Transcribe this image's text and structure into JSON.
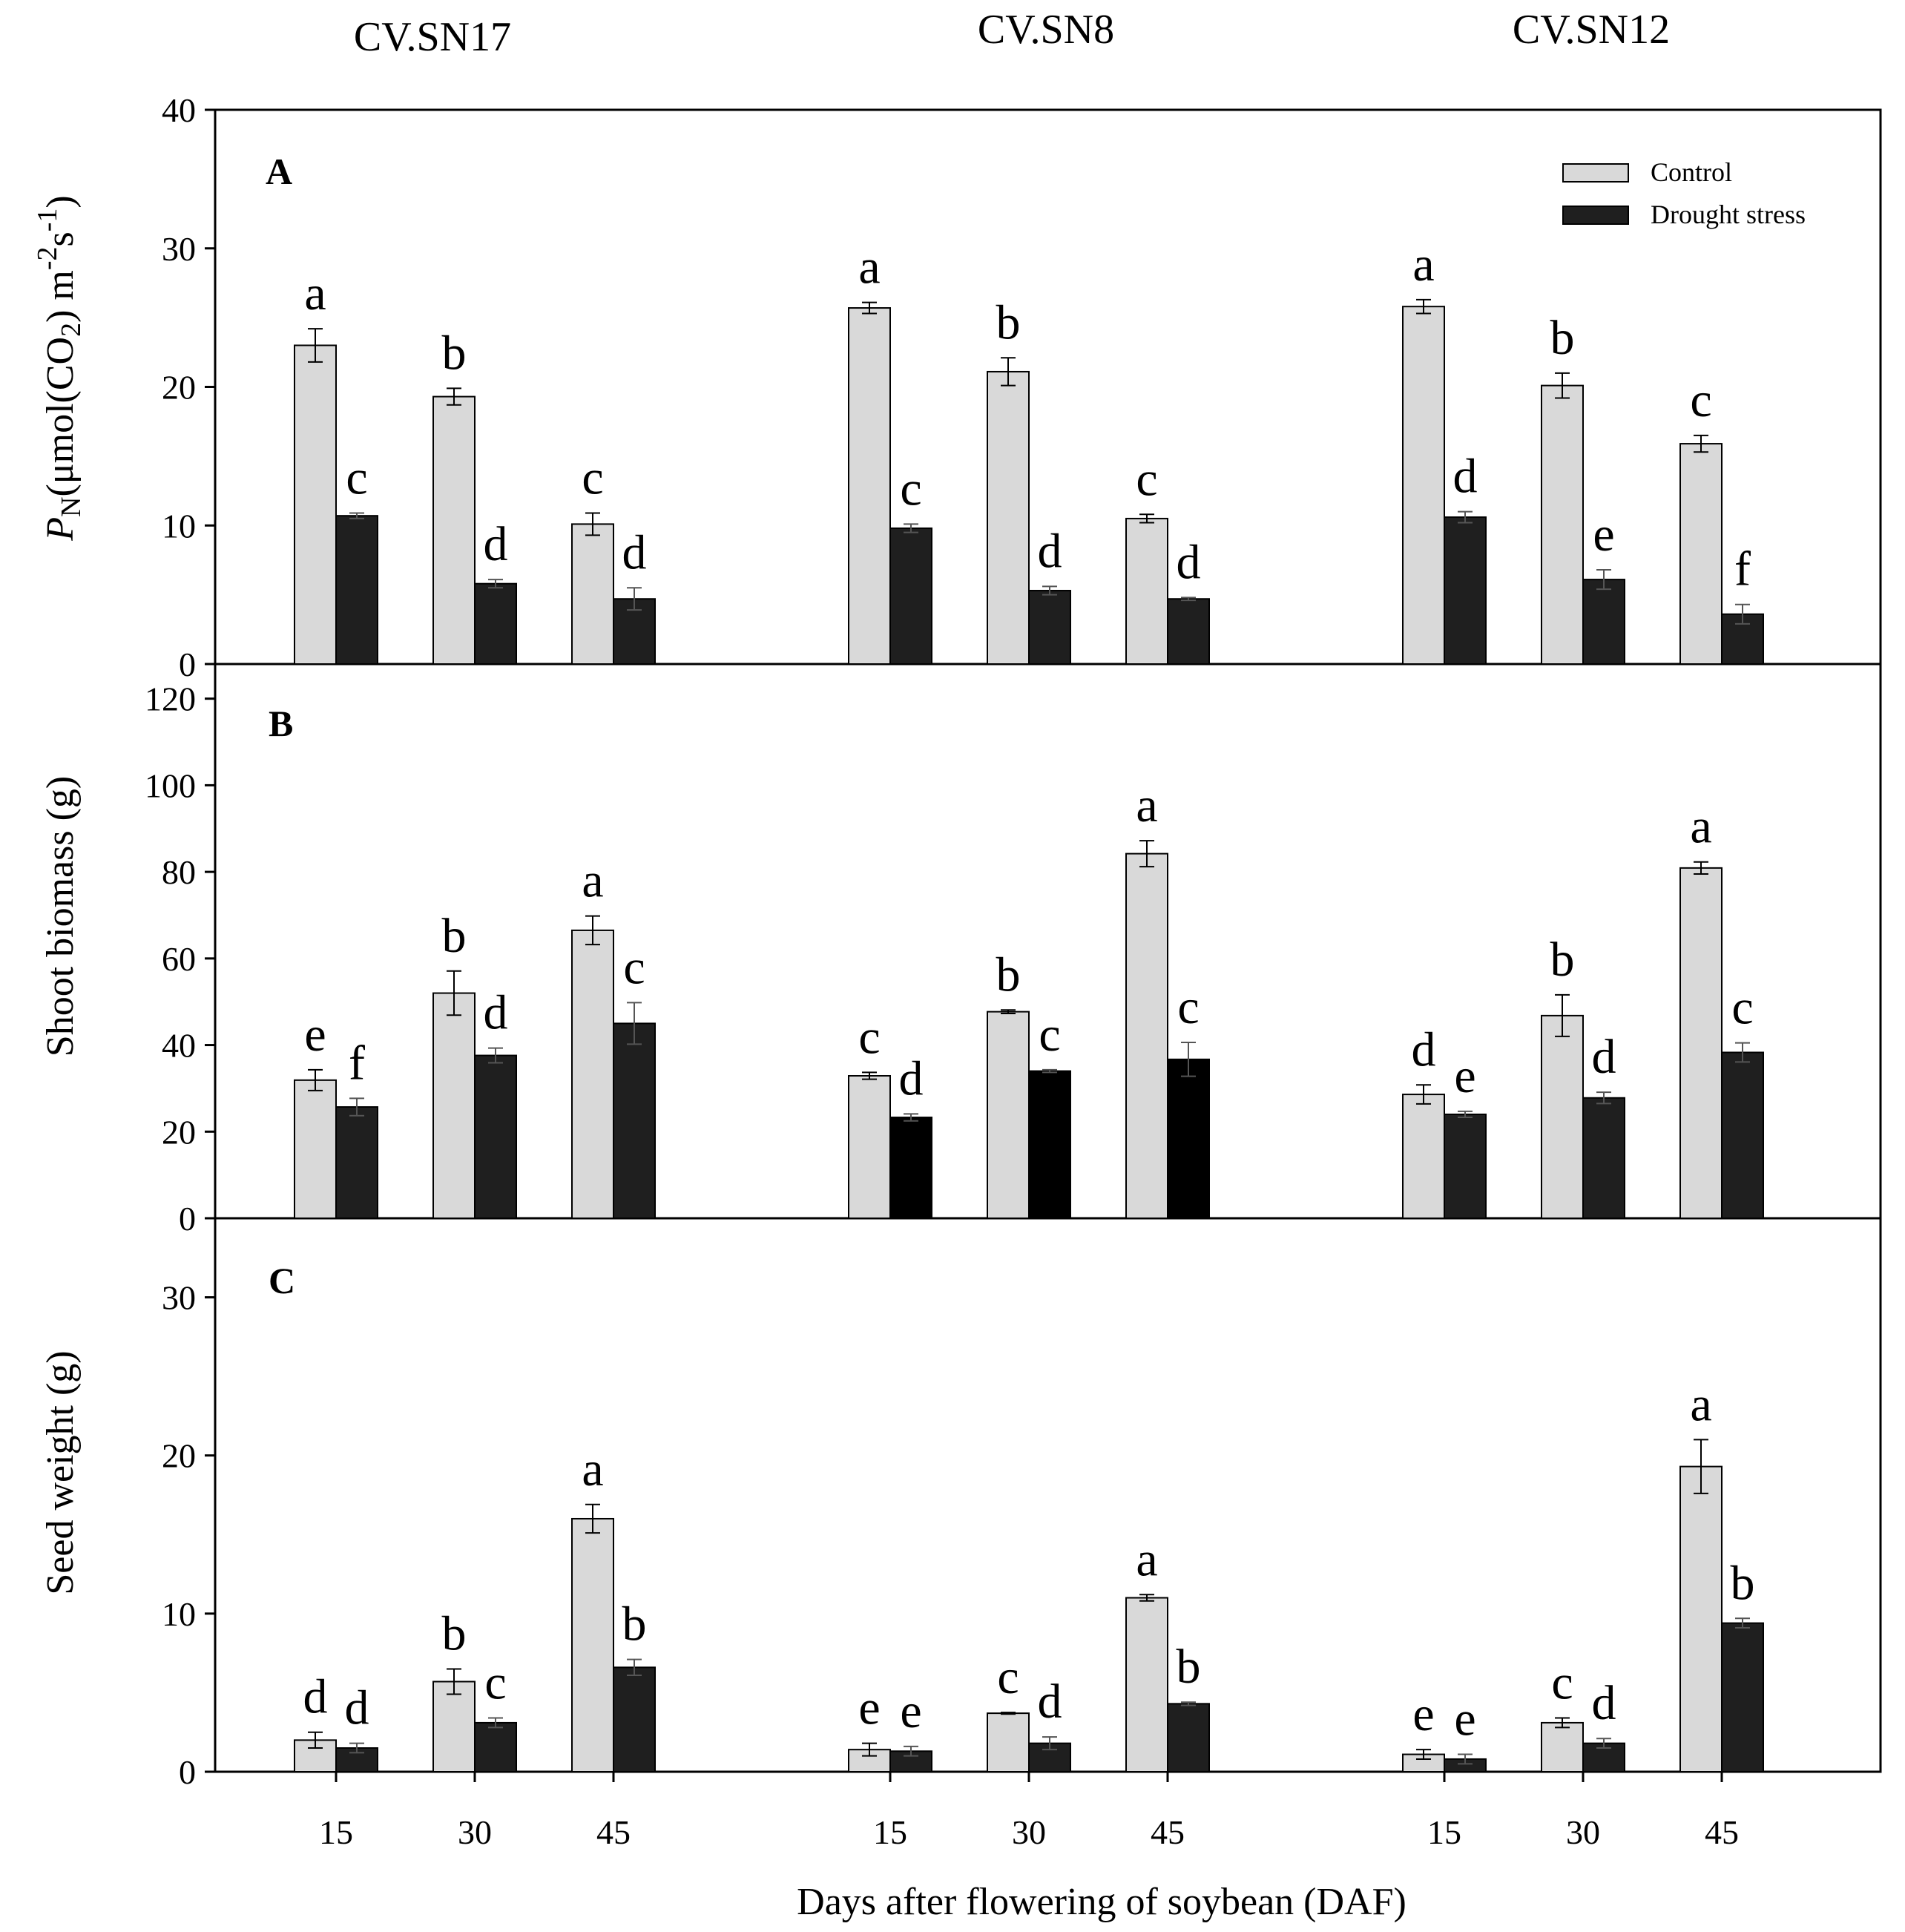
{
  "chart_data": {
    "type": "bar",
    "xlabel": "Days after flowering of soybean (DAF)",
    "cultivars": [
      "CV.SN17",
      "CV.SN8",
      "CV.SN12"
    ],
    "days": [
      "15",
      "30",
      "45"
    ],
    "legend": {
      "control": "Control",
      "drought": "Drought stress"
    },
    "colors": {
      "control": "#d9d9d9",
      "drought": "#1f1f1f",
      "drought_sn8_biomass": "#000000"
    },
    "panels": [
      {
        "id": "A",
        "ylabel_main": "P",
        "ylabel_sub": "N",
        "ylabel_rest": "(μmol(CO",
        "ylabel_sub2": "2",
        "ylabel_unit": ") m",
        "ylabel_sup1": "-2",
        "ylabel_s": "s",
        "ylabel_sup2": "-1",
        "ylabel_close": ")",
        "ylim": [
          0,
          40
        ],
        "yticks": [
          "0",
          "10",
          "20",
          "30",
          "40"
        ],
        "control": [
          [
            23.0,
            19.3,
            10.1
          ],
          [
            25.7,
            21.1,
            10.5
          ],
          [
            25.8,
            20.1,
            15.9
          ]
        ],
        "control_err": [
          [
            1.2,
            0.6,
            0.8
          ],
          [
            0.4,
            1.0,
            0.3
          ],
          [
            0.5,
            0.9,
            0.6
          ]
        ],
        "drought": [
          [
            10.7,
            5.8,
            4.7
          ],
          [
            9.8,
            5.3,
            4.7
          ],
          [
            10.6,
            6.1,
            3.6
          ]
        ],
        "drought_err": [
          [
            0.2,
            0.3,
            0.8
          ],
          [
            0.3,
            0.3,
            0.1
          ],
          [
            0.4,
            0.7,
            0.7
          ]
        ],
        "control_sig": [
          [
            "a",
            "b",
            "c"
          ],
          [
            "a",
            "b",
            "c"
          ],
          [
            "a",
            "b",
            "c"
          ]
        ],
        "drought_sig": [
          [
            "c",
            "d",
            "d"
          ],
          [
            "c",
            "d",
            "d"
          ],
          [
            "d",
            "e",
            "f"
          ]
        ]
      },
      {
        "id": "B",
        "ylabel": "Shoot biomass (g)",
        "ylim": [
          0,
          128
        ],
        "yticks": [
          "0",
          "20",
          "40",
          "60",
          "80",
          "100",
          "120"
        ],
        "ytick_values": [
          0,
          20,
          40,
          60,
          80,
          100,
          120
        ],
        "control": [
          [
            31.9,
            52.0,
            66.5
          ],
          [
            32.9,
            47.7,
            84.2
          ],
          [
            28.6,
            46.8,
            80.9
          ]
        ],
        "control_err": [
          [
            2.4,
            5.1,
            3.3
          ],
          [
            0.8,
            0.4,
            3.0
          ],
          [
            2.2,
            4.8,
            1.4
          ]
        ],
        "drought": [
          [
            25.7,
            37.6,
            45.0
          ],
          [
            23.3,
            34.0,
            36.7
          ],
          [
            24.0,
            27.8,
            38.3
          ]
        ],
        "drought_err": [
          [
            2.0,
            1.7,
            4.8
          ],
          [
            0.8,
            0.3,
            3.9
          ],
          [
            0.7,
            1.3,
            2.2
          ]
        ],
        "control_sig": [
          [
            "e",
            "b",
            "a"
          ],
          [
            "c",
            "b",
            "a"
          ],
          [
            "d",
            "b",
            "a"
          ]
        ],
        "drought_sig": [
          [
            "f",
            "d",
            "c"
          ],
          [
            "d",
            "c",
            "c"
          ],
          [
            "e",
            "d",
            "c"
          ]
        ]
      },
      {
        "id": "C",
        "ylabel": "Seed weight (g)",
        "ylim": [
          0,
          35
        ],
        "yticks": [
          "0",
          "10",
          "20",
          "30"
        ],
        "ytick_values": [
          0,
          10,
          20,
          30
        ],
        "control": [
          [
            2.0,
            5.7,
            16.0
          ],
          [
            1.4,
            3.7,
            11.0
          ],
          [
            1.1,
            3.1,
            19.3
          ]
        ],
        "control_err": [
          [
            0.5,
            0.8,
            0.9
          ],
          [
            0.4,
            0.05,
            0.2
          ],
          [
            0.3,
            0.3,
            1.7
          ]
        ],
        "drought": [
          [
            1.5,
            3.1,
            6.6
          ],
          [
            1.3,
            1.8,
            4.3
          ],
          [
            0.8,
            1.8,
            9.4
          ]
        ],
        "drought_err": [
          [
            0.3,
            0.3,
            0.5
          ],
          [
            0.3,
            0.4,
            0.1
          ],
          [
            0.3,
            0.3,
            0.3
          ]
        ],
        "control_sig": [
          [
            "d",
            "b",
            "a"
          ],
          [
            "e",
            "c",
            "a"
          ],
          [
            "e",
            "c",
            "a"
          ]
        ],
        "drought_sig": [
          [
            "d",
            "c",
            "b"
          ],
          [
            "e",
            "d",
            "b"
          ],
          [
            "e",
            "d",
            "b"
          ]
        ]
      }
    ]
  }
}
